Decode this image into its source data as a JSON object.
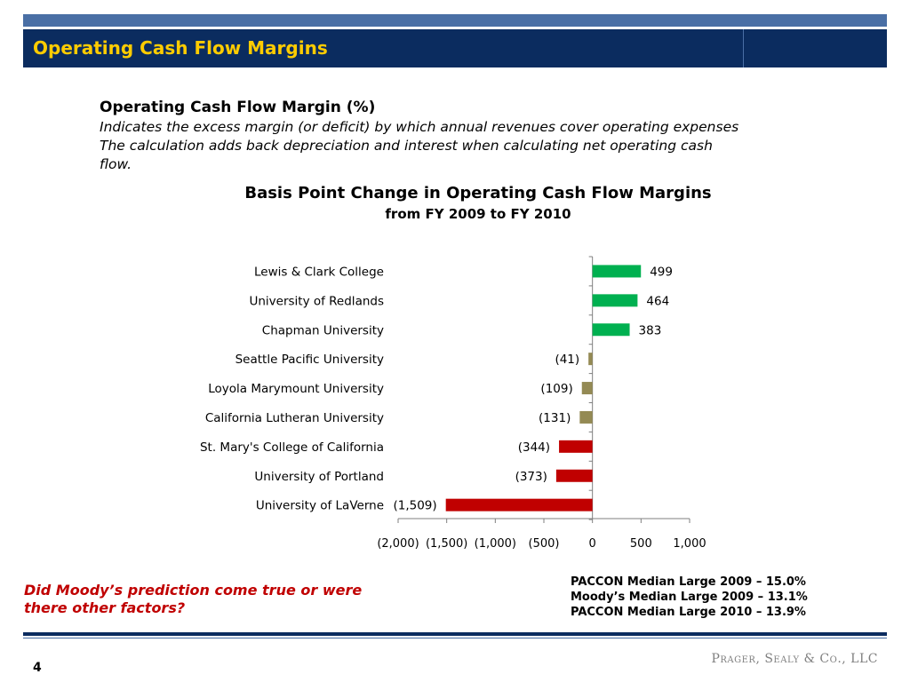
{
  "slide": {
    "title": "Operating Cash Flow Margins",
    "heading": "Operating Cash Flow Margin (%)",
    "description_lines": [
      "Indicates the excess margin (or deficit) by which annual revenues cover operating expenses",
      "The calculation adds back  depreciation and interest when calculating net operating cash",
      "flow."
    ],
    "question_lines": [
      "Did Moody’s prediction come true or were",
      "there other factors?"
    ],
    "medians": [
      "PACCON Median  Large 2009 – 15.0%",
      "Moody’s Median Large 2009 – 13.1%",
      "PACCON Median Large 2010 – 13.9%"
    ],
    "page_number": "4",
    "firm_name": "Prager, Sealy & Co., LLC"
  },
  "colors": {
    "positive": "#00b050",
    "small_negative": "#948a54",
    "large_negative": "#c00000",
    "header_bg": "#0b2c5f",
    "header_text": "#ffcc00"
  },
  "chart_data": {
    "type": "bar",
    "orientation": "horizontal",
    "title": "Basis Point Change in Operating Cash Flow Margins",
    "subtitle": "from FY 2009 to FY 2010",
    "categories": [
      "Lewis & Clark College",
      "University of Redlands",
      "Chapman  University",
      "Seattle Pacific University",
      "Loyola Marymount  University",
      "California Lutheran University",
      "St. Mary's  College of  California",
      "University of Portland",
      "University of LaVerne"
    ],
    "values": [
      499,
      464,
      383,
      -41,
      -109,
      -131,
      -344,
      -373,
      -1509
    ],
    "value_labels": [
      "499",
      "464",
      "383",
      "(41)",
      "(109)",
      "(131)",
      "(344)",
      "(373)",
      "(1,509)"
    ],
    "bar_colors": [
      "#00b050",
      "#00b050",
      "#00b050",
      "#948a54",
      "#948a54",
      "#948a54",
      "#c00000",
      "#c00000",
      "#c00000"
    ],
    "xlim": [
      -2000,
      1000
    ],
    "x_ticks": [
      -2000,
      -1500,
      -1000,
      -500,
      0,
      500,
      1000
    ],
    "x_tick_labels": [
      "(2,000)",
      "(1,500)",
      "(1,000)",
      "(500)",
      "0",
      "500",
      "1,000"
    ],
    "grid": false,
    "legend": "none"
  }
}
